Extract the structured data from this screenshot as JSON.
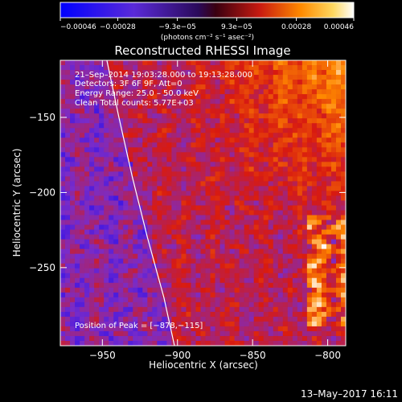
{
  "chart_data": {
    "type": "heatmap",
    "title": "Reconstructed RHESSI Image",
    "xlabel": "Heliocentric X (arcsec)",
    "ylabel": "Heliocentric Y (arcsec)",
    "xlim": [
      -978,
      -788
    ],
    "ylim": [
      -302,
      -112
    ],
    "xticks": [
      -950,
      -900,
      -850,
      -800
    ],
    "xtick_labels": [
      "−950",
      "−900",
      "−850",
      "−800"
    ],
    "yticks": [
      -250,
      -200,
      -150
    ],
    "ytick_labels": [
      "−250",
      "−200",
      "−150"
    ],
    "grid": false,
    "colorbar": {
      "range": [
        -0.00046,
        0.00046
      ],
      "ticks": [
        -0.00046,
        -0.00028,
        -9.3e-05,
        9.3e-05,
        0.00028,
        0.00046
      ],
      "tick_labels": [
        "−0.00046",
        "−0.00028",
        "−9.3e−05",
        "9.3e−05",
        "0.00028",
        "0.00046"
      ],
      "units_label": "(photons cm⁻² s⁻¹ asec⁻²)",
      "colors": [
        "#0000ff",
        "#7a2cc8",
        "#d81a10",
        "#ff8a00",
        "#ffffff"
      ]
    },
    "annotations": {
      "time_range": "21–Sep–2014 19:03:28.000 to 19:13:28.000",
      "detectors": "Detectors: 3F 6F 9F, Att=0",
      "energy": "Energy Range: 25.0 – 50.0 keV",
      "clean": "Clean     Total counts: 5.77E+03",
      "peak": "Position of Peak = [−878,−115]"
    },
    "limb": [
      [
        -947,
        -112
      ],
      [
        -939,
        -150
      ],
      [
        -930,
        -190
      ],
      [
        -920,
        -230
      ],
      [
        -909,
        -270
      ],
      [
        -902,
        -302
      ]
    ],
    "peak": [
      -878,
      -115
    ]
  },
  "footer": {
    "date": "13–May–2017 16:11"
  }
}
